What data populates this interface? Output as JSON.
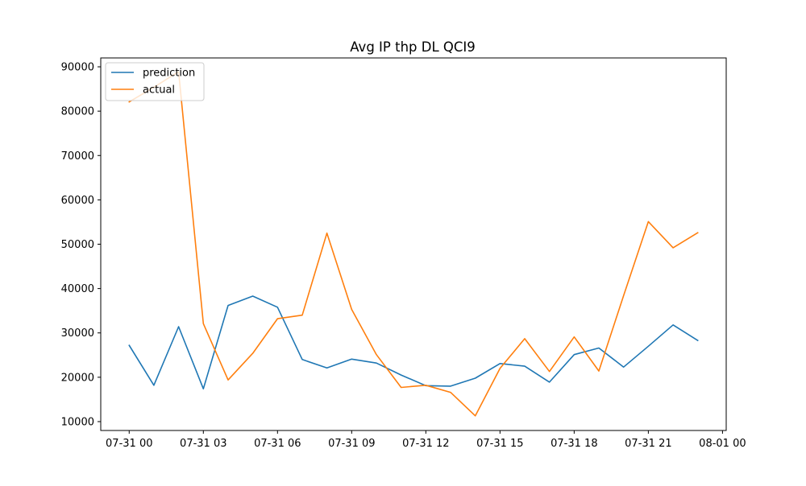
{
  "chart_data": {
    "type": "line",
    "title": "Avg IP thp DL QCI9",
    "xlabel": "",
    "ylabel": "",
    "x": [
      "07-31 00:00",
      "07-31 01:00",
      "07-31 02:00",
      "07-31 03:00",
      "07-31 04:00",
      "07-31 05:00",
      "07-31 06:00",
      "07-31 07:00",
      "07-31 08:00",
      "07-31 09:00",
      "07-31 10:00",
      "07-31 11:00",
      "07-31 12:00",
      "07-31 13:00",
      "07-31 14:00",
      "07-31 15:00",
      "07-31 16:00",
      "07-31 17:00",
      "07-31 18:00",
      "07-31 19:00",
      "07-31 20:00",
      "07-31 21:00",
      "07-31 22:00",
      "07-31 23:00"
    ],
    "series": [
      {
        "name": "prediction",
        "color": "#1f77b4",
        "values": [
          27200,
          18200,
          31400,
          17400,
          36200,
          38300,
          35800,
          24000,
          22100,
          24100,
          23200,
          20500,
          18100,
          18000,
          19800,
          23100,
          22500,
          18900,
          25100,
          26600,
          22300,
          27000,
          31800,
          28300
        ]
      },
      {
        "name": "actual",
        "color": "#ff7f0e",
        "values": [
          82100,
          85400,
          88900,
          32100,
          19400,
          25400,
          33200,
          34000,
          52500,
          35300,
          25100,
          17700,
          18200,
          16600,
          11300,
          22000,
          28700,
          21300,
          29100,
          21400,
          38400,
          55100,
          49200,
          52600
        ]
      }
    ],
    "xlim": [
      -1.15,
      24.15
    ],
    "ylim": [
      8000,
      92000
    ],
    "xticks": [
      {
        "pos": 0,
        "label": "07-31 00"
      },
      {
        "pos": 3,
        "label": "07-31 03"
      },
      {
        "pos": 6,
        "label": "07-31 06"
      },
      {
        "pos": 9,
        "label": "07-31 09"
      },
      {
        "pos": 12,
        "label": "07-31 12"
      },
      {
        "pos": 15,
        "label": "07-31 15"
      },
      {
        "pos": 18,
        "label": "07-31 18"
      },
      {
        "pos": 21,
        "label": "07-31 21"
      },
      {
        "pos": 24,
        "label": "08-01 00"
      }
    ],
    "yticks": [
      {
        "value": 10000,
        "label": "10000"
      },
      {
        "value": 20000,
        "label": "20000"
      },
      {
        "value": 30000,
        "label": "30000"
      },
      {
        "value": 40000,
        "label": "40000"
      },
      {
        "value": 50000,
        "label": "50000"
      },
      {
        "value": 60000,
        "label": "60000"
      },
      {
        "value": 70000,
        "label": "70000"
      },
      {
        "value": 80000,
        "label": "80000"
      },
      {
        "value": 90000,
        "label": "90000"
      }
    ],
    "grid": false,
    "legend": "upper-left"
  }
}
